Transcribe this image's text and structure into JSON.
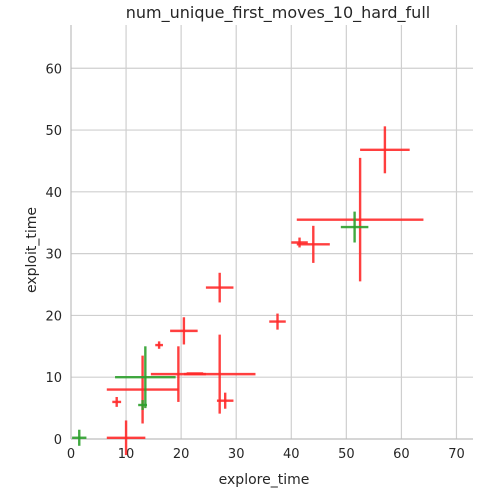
{
  "chart_data": {
    "type": "scatter",
    "title": "num_unique_first_moves_10_hard_full",
    "xlabel": "explore_time",
    "ylabel": "exploit_time",
    "xlim": [
      0,
      73
    ],
    "ylim": [
      0,
      67
    ],
    "xticks": [
      0,
      10,
      20,
      30,
      40,
      50,
      60,
      70
    ],
    "yticks": [
      0,
      10,
      20,
      30,
      40,
      50,
      60
    ],
    "grid": true,
    "error_bars": true,
    "series": [
      {
        "color": "#ff2a2a",
        "points": [
          {
            "x": 57,
            "y": 46.8,
            "xerr": 4.5,
            "yerr": 3.8
          },
          {
            "x": 52.5,
            "y": 35.5,
            "xerr": 11.5,
            "yerr": 10
          },
          {
            "x": 44,
            "y": 31.5,
            "xerr": 3,
            "yerr": 3
          },
          {
            "x": 41.5,
            "y": 31.8,
            "xerr": 1.5,
            "yerr": 0.8
          },
          {
            "x": 37.5,
            "y": 19,
            "xerr": 1.5,
            "yerr": 1.3
          },
          {
            "x": 27,
            "y": 24.5,
            "xerr": 2.5,
            "yerr": 2.4
          },
          {
            "x": 20.5,
            "y": 17.5,
            "xerr": 2.5,
            "yerr": 2.2
          },
          {
            "x": 27,
            "y": 10.5,
            "xerr": 6.5,
            "yerr": 6.4
          },
          {
            "x": 22.5,
            "y": 10.6,
            "xerr": 1.5,
            "yerr": 0
          },
          {
            "x": 19.5,
            "y": 10.5,
            "xerr": 5,
            "yerr": 4.5
          },
          {
            "x": 28,
            "y": 6.2,
            "xerr": 1.5,
            "yerr": 1.3
          },
          {
            "x": 16,
            "y": 15.2,
            "xerr": 0.7,
            "yerr": 0.6
          },
          {
            "x": 13,
            "y": 8,
            "xerr": 6.5,
            "yerr": 5.5
          },
          {
            "x": 8.3,
            "y": 6,
            "xerr": 0.8,
            "yerr": 0.8
          },
          {
            "x": 10,
            "y": 0.2,
            "xerr": 3.5,
            "yerr": 2.8
          }
        ]
      },
      {
        "color": "#2ca02c",
        "points": [
          {
            "x": 51.5,
            "y": 34.3,
            "xerr": 2.5,
            "yerr": 2.5
          },
          {
            "x": 13.5,
            "y": 10,
            "xerr": 5.5,
            "yerr": 5
          },
          {
            "x": 13,
            "y": 5.5,
            "xerr": 0.8,
            "yerr": 0.8
          },
          {
            "x": 1.5,
            "y": 0.2,
            "xerr": 1.3,
            "yerr": 1.3
          }
        ]
      }
    ]
  }
}
